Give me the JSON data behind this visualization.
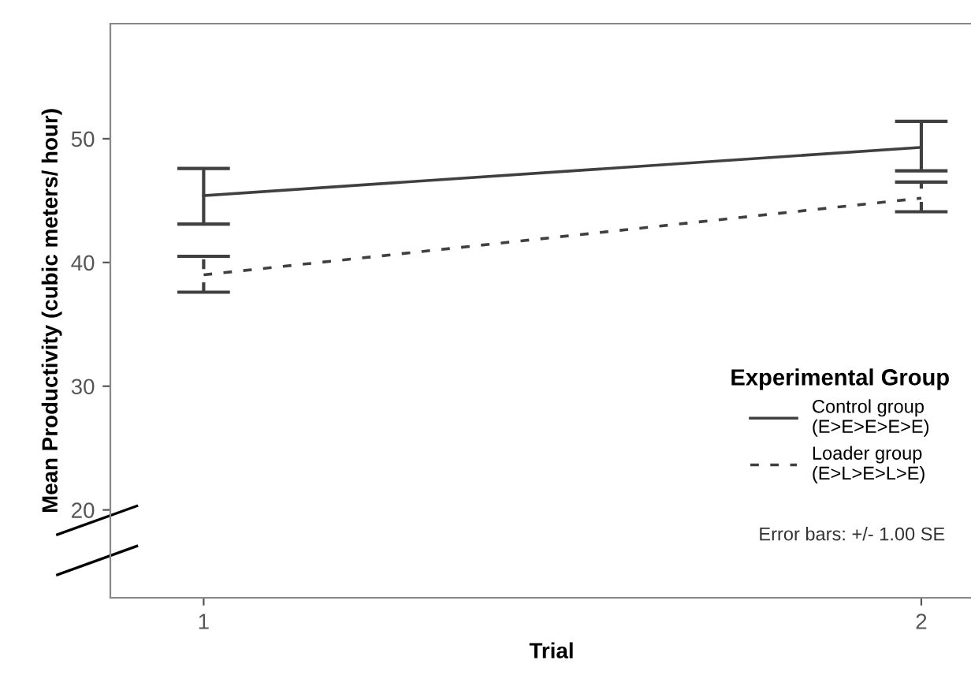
{
  "chart_data": {
    "type": "line",
    "xlabel": "Trial",
    "ylabel": "Mean Productivity (cubic meters/ hour)",
    "legend_title": "Experimental Group",
    "categories": [
      "1",
      "2"
    ],
    "series": [
      {
        "name": "Control group\n(E>E>E>E>E)",
        "color": "#404040",
        "line_style": "solid",
        "values": [
          45.4,
          49.3
        ],
        "errors": [
          [
            43.1,
            47.6
          ],
          [
            47.4,
            51.4
          ]
        ]
      },
      {
        "name": "Loader group\n(E>L>E>L>E)",
        "color": "#404040",
        "line_style": "dashed",
        "values": [
          39.0,
          45.2
        ],
        "errors": [
          [
            37.6,
            40.5
          ],
          [
            44.1,
            46.5
          ]
        ]
      }
    ],
    "ylim": [
      12.9,
      59.3
    ],
    "yticks": [
      20,
      30,
      40,
      50
    ],
    "grid": false,
    "legend": "bottom right",
    "marker": "none",
    "annotations": [
      "Error bars: +/- 1.00 SE"
    ]
  }
}
